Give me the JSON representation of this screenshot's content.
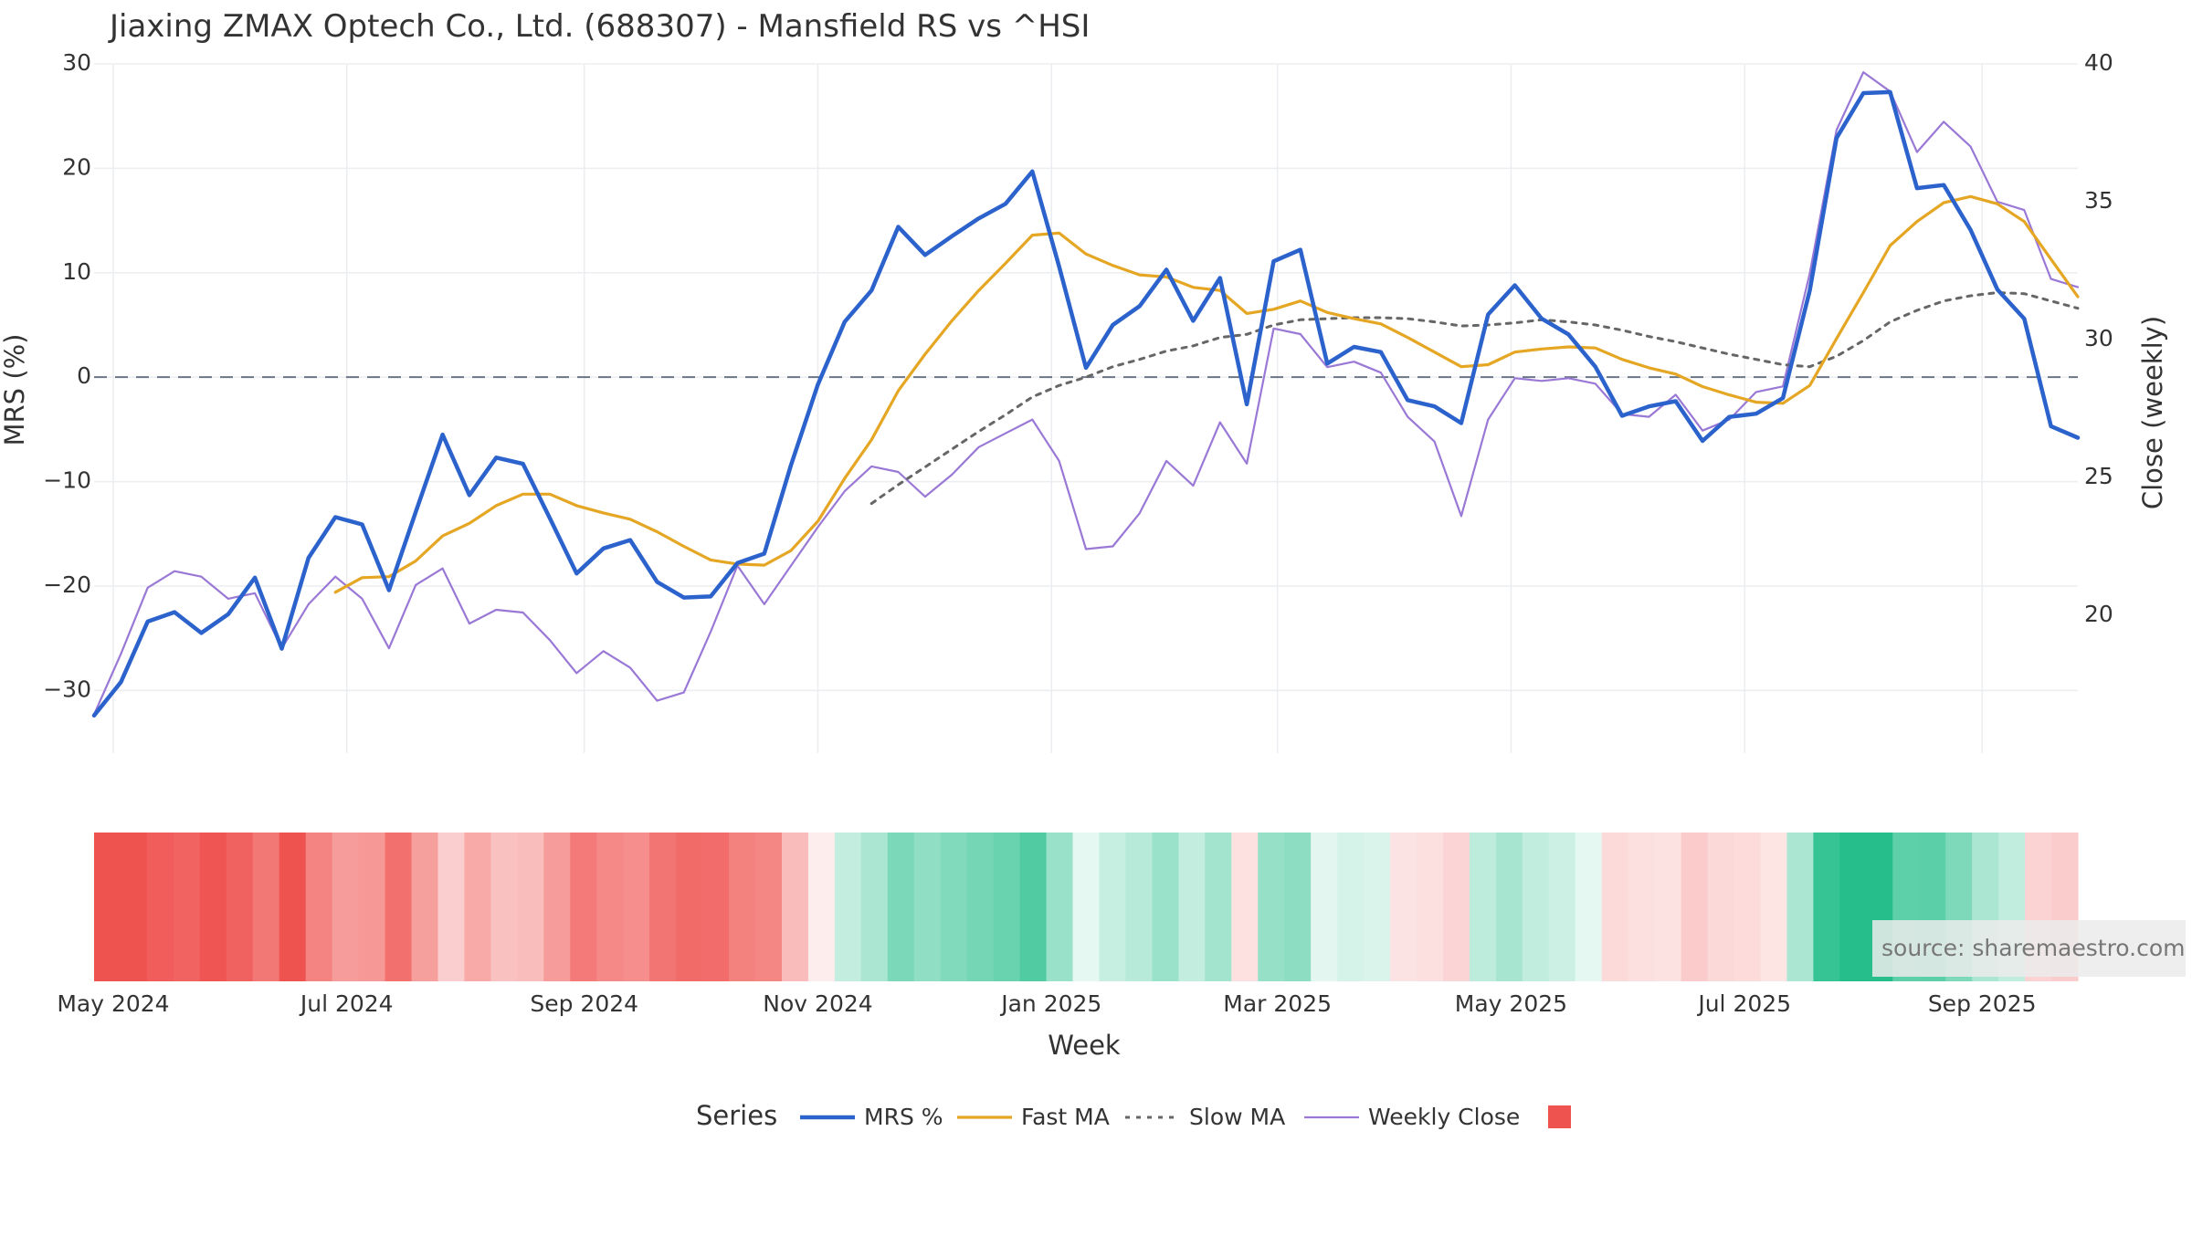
{
  "chart_data": {
    "type": "line",
    "title": "Jiaxing ZMAX Optech Co., Ltd. (688307) - Mansfield RS vs ^HSI",
    "xlabel": "Week",
    "ylabel": "MRS (%)",
    "y2label": "Close (weekly)",
    "ylim": [
      -36,
      30
    ],
    "y2lim": [
      15,
      40
    ],
    "yticks": [
      -30,
      -20,
      -10,
      0,
      10,
      20,
      30
    ],
    "ytick_labels": [
      "−30",
      "−20",
      "−10",
      "0",
      "10",
      "20",
      "30"
    ],
    "y2ticks": [
      20,
      25,
      30,
      35,
      40
    ],
    "y2tick_labels": [
      "20",
      "25",
      "30",
      "35",
      "40"
    ],
    "x_start": "2024-04-26",
    "x_end": "2025-09-26",
    "xticks": [
      "2024-05-01",
      "2024-07-01",
      "2024-09-01",
      "2024-11-01",
      "2025-01-01",
      "2025-03-01",
      "2025-05-01",
      "2025-07-01",
      "2025-09-01"
    ],
    "xtick_labels": [
      "May 2024",
      "Jul 2024",
      "Sep 2024",
      "Nov 2024",
      "Jan 2025",
      "Mar 2025",
      "May 2025",
      "Jul 2025",
      "Sep 2025"
    ],
    "grid": true,
    "zero_line": 0,
    "legend": {
      "title": "Series",
      "position": "bottom",
      "items": [
        "MRS %",
        "Fast MA",
        "Slow MA",
        "Weekly Close",
        ""
      ]
    },
    "source": "source: sharemaestro.com",
    "colors": {
      "mrs": "#2b62cc",
      "fast": "#e5a624",
      "slow": "#666666",
      "close": "#9a78d6",
      "heat_neg": "#ef5350",
      "heat_pos": "#26bf8c",
      "zero_line": "#6b7585",
      "grid": "#ebedf0"
    },
    "x": [
      "2024-04-26",
      "2024-05-03",
      "2024-05-10",
      "2024-05-17",
      "2024-05-24",
      "2024-05-31",
      "2024-06-07",
      "2024-06-14",
      "2024-06-21",
      "2024-06-28",
      "2024-07-05",
      "2024-07-12",
      "2024-07-19",
      "2024-07-26",
      "2024-08-02",
      "2024-08-09",
      "2024-08-16",
      "2024-08-23",
      "2024-08-30",
      "2024-09-06",
      "2024-09-13",
      "2024-09-20",
      "2024-09-27",
      "2024-10-04",
      "2024-10-11",
      "2024-10-18",
      "2024-10-25",
      "2024-11-01",
      "2024-11-08",
      "2024-11-15",
      "2024-11-22",
      "2024-11-29",
      "2024-12-06",
      "2024-12-13",
      "2024-12-20",
      "2024-12-27",
      "2025-01-03",
      "2025-01-10",
      "2025-01-17",
      "2025-01-24",
      "2025-01-31",
      "2025-02-07",
      "2025-02-14",
      "2025-02-21",
      "2025-02-28",
      "2025-03-07",
      "2025-03-14",
      "2025-03-21",
      "2025-03-28",
      "2025-04-04",
      "2025-04-11",
      "2025-04-18",
      "2025-04-25",
      "2025-05-02",
      "2025-05-09",
      "2025-05-16",
      "2025-05-23",
      "2025-05-30",
      "2025-06-06",
      "2025-06-13",
      "2025-06-20",
      "2025-06-27",
      "2025-07-04",
      "2025-07-11",
      "2025-07-18",
      "2025-07-25",
      "2025-08-01",
      "2025-08-08",
      "2025-08-15",
      "2025-08-22",
      "2025-08-29",
      "2025-09-05",
      "2025-09-12",
      "2025-09-19",
      "2025-09-26"
    ],
    "series": [
      {
        "name": "MRS %",
        "axis": "y",
        "values": [
          -32.4,
          -29.2,
          -23.4,
          -22.5,
          -24.5,
          -22.7,
          -19.2,
          -26.0,
          -17.3,
          -13.4,
          -14.1,
          -20.4,
          -12.9,
          -5.5,
          -11.3,
          -7.7,
          -8.3,
          -13.5,
          -18.8,
          -16.4,
          -15.6,
          -19.6,
          -21.1,
          -21.0,
          -17.8,
          -16.9,
          -8.4,
          -0.7,
          5.3,
          8.3,
          14.4,
          11.7,
          13.5,
          15.2,
          16.6,
          19.7,
          10.6,
          0.9,
          5.0,
          6.8,
          10.3,
          5.4,
          9.5,
          -2.6,
          11.1,
          12.2,
          1.3,
          2.9,
          2.4,
          -2.2,
          -2.8,
          -4.4,
          6.0,
          8.8,
          5.6,
          4.1,
          1.0,
          -3.7,
          -2.8,
          -2.3,
          -6.1,
          -3.8,
          -3.5,
          -2.0,
          8.3,
          22.9,
          27.2,
          27.3,
          18.1,
          18.4,
          14.1,
          8.4,
          5.6,
          -4.7,
          -5.8
        ]
      },
      {
        "name": "Fast MA",
        "axis": "y",
        "values": [
          null,
          null,
          null,
          null,
          null,
          null,
          null,
          null,
          null,
          -20.6,
          -19.2,
          -19.1,
          -17.6,
          -15.2,
          -14.0,
          -12.3,
          -11.2,
          -11.2,
          -12.3,
          -13.0,
          -13.6,
          -14.8,
          -16.2,
          -17.5,
          -17.9,
          -18.0,
          -16.6,
          -13.8,
          -9.7,
          -6.0,
          -1.3,
          2.2,
          5.4,
          8.3,
          10.9,
          13.6,
          13.8,
          11.8,
          10.7,
          9.8,
          9.6,
          8.6,
          8.3,
          6.1,
          6.5,
          7.3,
          6.2,
          5.6,
          5.1,
          3.8,
          2.4,
          1.0,
          1.2,
          2.4,
          2.7,
          2.9,
          2.8,
          1.7,
          0.9,
          0.3,
          -0.9,
          -1.7,
          -2.4,
          -2.5,
          -0.8,
          3.7,
          8.1,
          12.6,
          14.9,
          16.7,
          17.3,
          16.6,
          14.9,
          11.3,
          7.7
        ]
      },
      {
        "name": "Slow MA",
        "axis": "y",
        "values": [
          null,
          null,
          null,
          null,
          null,
          null,
          null,
          null,
          null,
          null,
          null,
          null,
          null,
          null,
          null,
          null,
          null,
          null,
          null,
          null,
          null,
          null,
          null,
          null,
          null,
          null,
          null,
          null,
          null,
          -12.1,
          -10.3,
          -8.6,
          -6.9,
          -5.2,
          -3.6,
          -1.9,
          -0.8,
          0.0,
          1.0,
          1.7,
          2.5,
          3.0,
          3.8,
          4.1,
          5.0,
          5.5,
          5.6,
          5.7,
          5.7,
          5.6,
          5.3,
          4.9,
          5.0,
          5.2,
          5.5,
          5.3,
          5.0,
          4.5,
          3.9,
          3.4,
          2.8,
          2.2,
          1.7,
          1.2,
          1.0,
          2.0,
          3.5,
          5.3,
          6.4,
          7.3,
          7.8,
          8.1,
          8.0,
          7.3,
          6.6
        ]
      },
      {
        "name": "Weekly Close",
        "axis": "y2",
        "values": [
          16.4,
          18.6,
          21.0,
          21.6,
          21.4,
          20.6,
          20.8,
          18.8,
          20.4,
          21.4,
          20.6,
          18.8,
          21.1,
          21.7,
          19.7,
          20.2,
          20.1,
          19.1,
          17.9,
          18.7,
          18.1,
          16.9,
          17.2,
          19.4,
          21.8,
          20.4,
          21.8,
          23.2,
          24.5,
          25.4,
          25.2,
          24.3,
          25.1,
          26.1,
          26.6,
          27.1,
          25.6,
          22.4,
          22.5,
          23.7,
          25.6,
          24.7,
          27.0,
          25.5,
          30.4,
          30.2,
          29.0,
          29.2,
          28.8,
          27.2,
          26.3,
          23.6,
          27.1,
          28.6,
          28.5,
          28.6,
          28.4,
          27.3,
          27.2,
          28.0,
          26.7,
          27.1,
          28.1,
          28.3,
          32.4,
          37.6,
          39.7,
          39.0,
          36.8,
          37.9,
          37.0,
          35.0,
          34.7,
          32.2,
          31.9
        ]
      }
    ],
    "heatmap": {
      "description_scale": "MRS % colour strip",
      "values": [
        -32.4,
        -29.2,
        -23.4,
        -22.5,
        -24.5,
        -22.7,
        -19.2,
        -26.0,
        -17.3,
        -13.4,
        -14.1,
        -20.4,
        -12.9,
        -5.5,
        -11.3,
        -7.7,
        -8.3,
        -13.5,
        -18.8,
        -16.4,
        -15.6,
        -19.6,
        -21.1,
        -21.0,
        -17.8,
        -16.9,
        -8.4,
        -0.7,
        5.3,
        8.3,
        14.4,
        11.7,
        13.5,
        15.2,
        16.6,
        19.7,
        10.6,
        0.9,
        5.0,
        6.8,
        10.3,
        5.4,
        9.5,
        -2.6,
        11.1,
        12.2,
        1.3,
        2.9,
        2.4,
        -2.2,
        -2.8,
        -4.4,
        6.0,
        8.8,
        5.6,
        4.1,
        1.0,
        -3.7,
        -2.8,
        -2.3,
        -6.1,
        -3.8,
        -3.5,
        -2.0,
        8.3,
        22.9,
        27.2,
        27.3,
        18.1,
        18.4,
        14.1,
        8.4,
        5.6,
        -4.7,
        -5.8
      ]
    }
  }
}
